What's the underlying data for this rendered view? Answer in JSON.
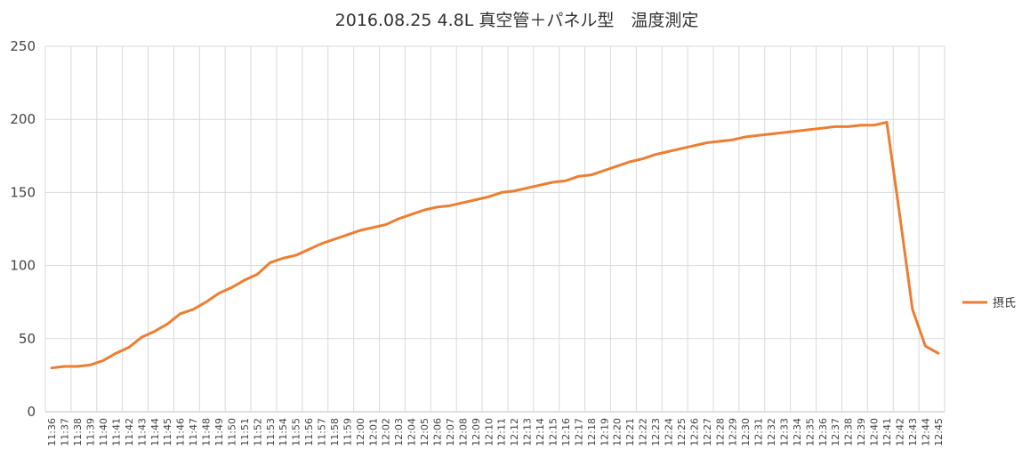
{
  "chart_data": {
    "type": "line",
    "title": "2016.08.25 4.8L 真空管＋パネル型　温度測定",
    "xlabel": "",
    "ylabel": "",
    "ylim": [
      0,
      250
    ],
    "yticks": [
      "0",
      "50",
      "100",
      "150",
      "200",
      "250"
    ],
    "grid": true,
    "legend_position": "right",
    "series_color": "#ED7D31",
    "categories": [
      "11:36",
      "11:37",
      "11:38",
      "11:39",
      "11:40",
      "11:41",
      "11:42",
      "11:43",
      "11:44",
      "11:45",
      "11:46",
      "11:47",
      "11:48",
      "11:49",
      "11:50",
      "11:51",
      "11:52",
      "11:53",
      "11:54",
      "11:55",
      "11:56",
      "11:57",
      "11:58",
      "11:59",
      "12:00",
      "12:01",
      "12:02",
      "12:03",
      "12:04",
      "12:05",
      "12:06",
      "12:07",
      "12:08",
      "12:09",
      "12:10",
      "12:11",
      "12:12",
      "12:13",
      "12:14",
      "12:15",
      "12:16",
      "12:17",
      "12:18",
      "12:19",
      "12:20",
      "12:21",
      "12:22",
      "12:23",
      "12:24",
      "12:25",
      "12:26",
      "12:27",
      "12:28",
      "12:29",
      "12:30",
      "12:31",
      "12:32",
      "12:33",
      "12:34",
      "12:35",
      "12:36",
      "12:37",
      "12:38",
      "12:39",
      "12:40",
      "12:41",
      "12:42",
      "12:43",
      "12:44",
      "12:45"
    ],
    "series": [
      {
        "name": "摂氏",
        "values": [
          30,
          31,
          31,
          32,
          35,
          40,
          44,
          51,
          55,
          60,
          67,
          70,
          75,
          81,
          85,
          90,
          94,
          102,
          105,
          107,
          111,
          115,
          118,
          121,
          124,
          126,
          128,
          132,
          135,
          138,
          140,
          141,
          143,
          145,
          147,
          150,
          151,
          153,
          155,
          157,
          158,
          161,
          162,
          165,
          168,
          171,
          173,
          176,
          178,
          180,
          182,
          184,
          185,
          186,
          188,
          189,
          190,
          191,
          192,
          193,
          194,
          195,
          195,
          196,
          196,
          198,
          135,
          70,
          45,
          40
        ]
      }
    ]
  }
}
